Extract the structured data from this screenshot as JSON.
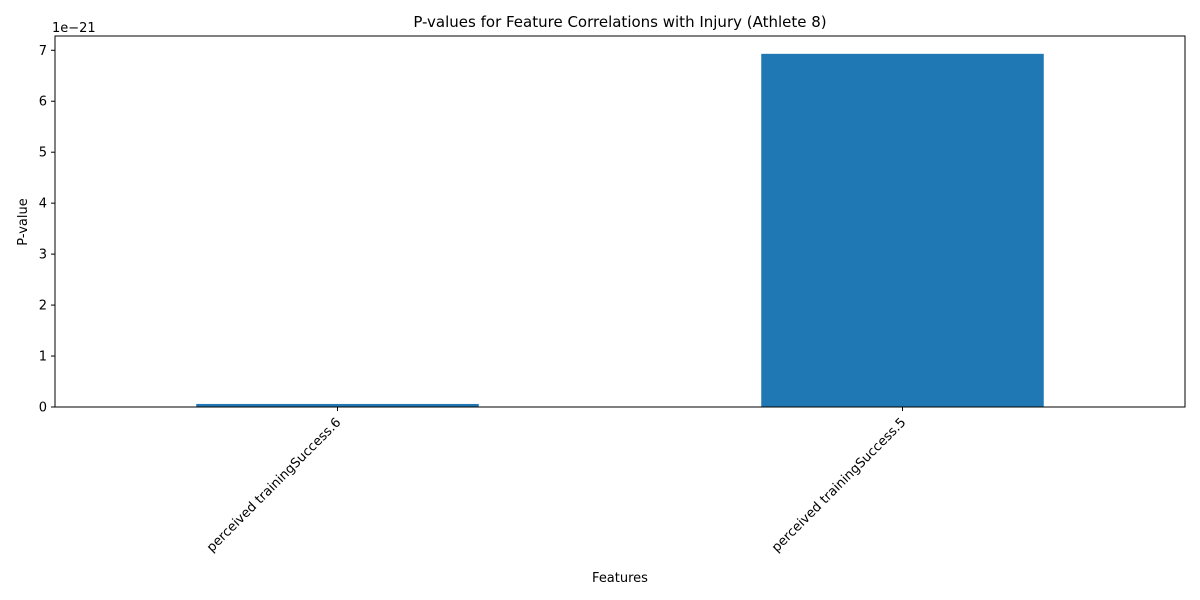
{
  "chart_data": {
    "type": "bar",
    "title": "P-values for Feature Correlations with Injury (Athlete 8)",
    "xlabel": "Features",
    "ylabel": "P-value",
    "y_offset_text": "1e−21",
    "categories": [
      "perceived trainingSuccess.6",
      "perceived trainingSuccess.5"
    ],
    "values": [
      0.06,
      6.93
    ],
    "value_multiplier_exponent": -21,
    "ylim": [
      0,
      7.28
    ],
    "yticks": [
      0,
      1,
      2,
      3,
      4,
      5,
      6,
      7
    ],
    "ytick_labels": [
      "0",
      "1",
      "2",
      "3",
      "4",
      "5",
      "6",
      "7"
    ],
    "bar_color": "#1f77b4",
    "grid": false,
    "legend": "none"
  }
}
